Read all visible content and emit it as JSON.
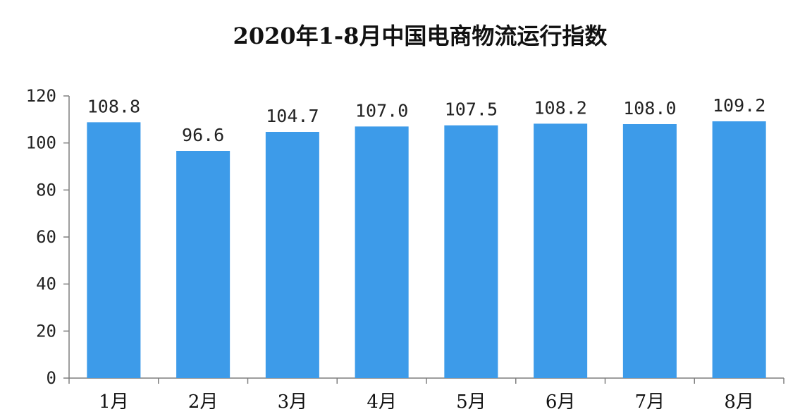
{
  "chart_data": {
    "type": "bar",
    "title": "2020年1-8月中国电商物流运行指数",
    "categories": [
      "1月",
      "2月",
      "3月",
      "4月",
      "5月",
      "6月",
      "7月",
      "8月"
    ],
    "values": [
      108.8,
      96.6,
      104.7,
      107.0,
      107.5,
      108.2,
      108.0,
      109.2
    ],
    "data_labels": [
      "108.8",
      "96.6",
      "104.7",
      "107.0",
      "107.5",
      "108.2",
      "108.0",
      "109.2"
    ],
    "y_ticks": [
      "0",
      "20",
      "40",
      "60",
      "80",
      "100",
      "120"
    ],
    "ylim": [
      0,
      120
    ],
    "xlabel": "",
    "ylabel": "",
    "grid": false,
    "legend": "none",
    "bar_color": "#3d9be9"
  }
}
